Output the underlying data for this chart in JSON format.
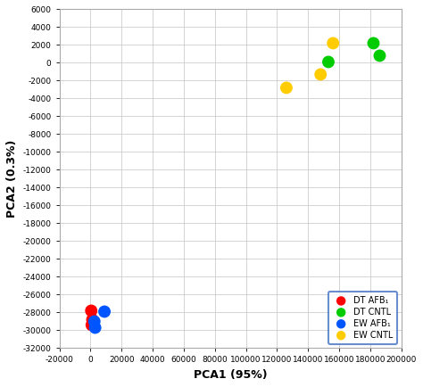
{
  "xlabel": "PCA1 (95%)",
  "ylabel": "PCA2 (0.3%)",
  "xlim": [
    -20000,
    200000
  ],
  "ylim": [
    -32000,
    6000
  ],
  "xticks": [
    -20000,
    0,
    20000,
    40000,
    60000,
    80000,
    100000,
    120000,
    140000,
    160000,
    180000,
    200000
  ],
  "yticks": [
    -32000,
    -30000,
    -28000,
    -26000,
    -24000,
    -22000,
    -20000,
    -18000,
    -16000,
    -14000,
    -12000,
    -10000,
    -8000,
    -6000,
    -4000,
    -2000,
    0,
    2000,
    4000,
    6000
  ],
  "groups": [
    {
      "label": "DT AFB₁",
      "color": "#ff0000",
      "points": [
        [
          500,
          -27800
        ],
        [
          1200,
          -28800
        ],
        [
          800,
          -29400
        ]
      ]
    },
    {
      "label": "DT CNTL",
      "color": "#00cc00",
      "points": [
        [
          182000,
          2200
        ],
        [
          186000,
          800
        ],
        [
          153000,
          100
        ]
      ]
    },
    {
      "label": "EW AFB₁",
      "color": "#0055ff",
      "points": [
        [
          9000,
          -27900
        ],
        [
          2500,
          -29000
        ],
        [
          3000,
          -29700
        ]
      ]
    },
    {
      "label": "EW CNTL",
      "color": "#ffcc00",
      "points": [
        [
          156000,
          2200
        ],
        [
          148000,
          -1300
        ],
        [
          126000,
          -2800
        ]
      ]
    }
  ],
  "marker_size": 100,
  "background_color": "#ffffff",
  "grid_color": "#cccccc",
  "legend_edgecolor": "#4472c4",
  "tick_labelsize": 6.5,
  "xlabel_fontsize": 9,
  "ylabel_fontsize": 9
}
